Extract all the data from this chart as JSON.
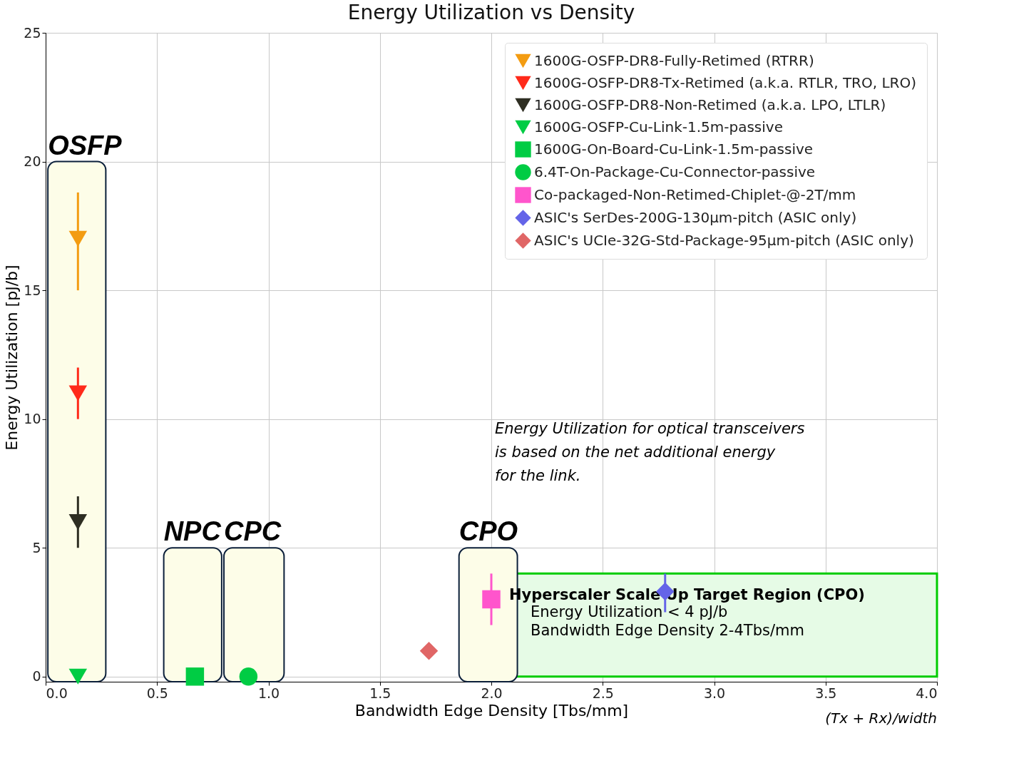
{
  "chart_data": {
    "type": "scatter",
    "title": "Energy Utilization vs Density",
    "xlabel": "Bandwidth Edge Density [Tbs/mm]",
    "ylabel": "Energy Utilization [pJ/b]",
    "xlim": [
      0,
      4
    ],
    "ylim": [
      -0.2,
      25
    ],
    "xticks": [
      {
        "value": 0,
        "label": "0.0"
      },
      0.5,
      {
        "value": 1,
        "label": "1.0"
      },
      1.5,
      {
        "value": 2,
        "label": "2.0"
      },
      2.5,
      {
        "value": 3,
        "label": "3.0"
      },
      3.5,
      {
        "value": 4,
        "label": "4.0"
      }
    ],
    "yticks": [
      0,
      5,
      10,
      15,
      20,
      25
    ],
    "grid": true,
    "legend": "top right",
    "series": [
      {
        "name": "1600G-OSFP-DR8-Fully-Retimed (RTRR)",
        "color": "#f39c12",
        "marker": "triangle-down",
        "x": [
          0.145
        ],
        "values": [
          17
        ],
        "errors": [
          [
            15,
            18.8
          ]
        ]
      },
      {
        "name": "1600G-OSFP-DR8-Tx-Retimed (a.k.a. RTLR, TRO, LRO)",
        "color": "#ff2a1a",
        "marker": "triangle-down",
        "x": [
          0.145
        ],
        "values": [
          11
        ],
        "errors": [
          [
            10,
            12
          ]
        ]
      },
      {
        "name": "1600G-OSFP-DR8-Non-Retimed (a.k.a. LPO, LTLR)",
        "color": "#2e2e22",
        "marker": "triangle-down",
        "x": [
          0.145
        ],
        "values": [
          6
        ],
        "errors": [
          [
            5,
            7
          ]
        ]
      },
      {
        "name": "1600G-OSFP-Cu-Link-1.5m-passive",
        "color": "#00cc44",
        "marker": "triangle-down",
        "x": [
          0.145
        ],
        "values": [
          0
        ]
      },
      {
        "name": "1600G-On-Board-Cu-Link-1.5m-passive",
        "color": "#00cc44",
        "marker": "square",
        "x": [
          0.67
        ],
        "values": [
          0
        ]
      },
      {
        "name": "6.4T-On-Package-Cu-Connector-passive",
        "color": "#00cc44",
        "marker": "circle",
        "x": [
          0.91
        ],
        "values": [
          0
        ]
      },
      {
        "name": "Co-packaged-Non-Retimed-Chiplet-@-2T/mm",
        "color": "#ff55cc",
        "marker": "square",
        "x": [
          2.0
        ],
        "values": [
          3
        ],
        "errors": [
          [
            2,
            4
          ]
        ]
      },
      {
        "name": "ASIC's SerDes-200G-130µm-pitch (ASIC only)",
        "color": "#6464e8",
        "marker": "diamond",
        "x": [
          2.78
        ],
        "values": [
          3.3
        ],
        "errors": [
          [
            2.5,
            4
          ]
        ]
      },
      {
        "name": "ASIC's UCIe-32G-Std-Package-95µm-pitch (ASIC only)",
        "color": "#e06666",
        "marker": "diamond",
        "x": [
          1.72
        ],
        "values": [
          1
        ]
      }
    ],
    "bands": [
      {
        "axis": "x",
        "from": 0.01,
        "to": 0.27,
        "label": "OSFP",
        "color": "#fdfde8"
      },
      {
        "axis": "x",
        "from": 0.53,
        "to": 0.79,
        "label": "NPC",
        "color": "#fdfde8"
      },
      {
        "axis": "x",
        "from": 0.8,
        "to": 1.07,
        "label": "CPC",
        "color": "#fdfde8"
      },
      {
        "axis": "x",
        "from": 1.855,
        "to": 2.117,
        "label": "CPO",
        "color": "#fdfde8"
      },
      {
        "axis": "x",
        "from": 2.0,
        "to": 4.0,
        "label": "Hyperscaler Scale Up Target Region (CPO)",
        "color": "#e6fbe6"
      }
    ],
    "annotations": [
      "Energy Utilization < 4 pJ/b\nBandwidth Edge Density 2-4Tbs/mm",
      "Energy Utilization for optical transceivers\nis based on the net additional energy\nfor the link.",
      "(Tx + Rx)/width"
    ]
  }
}
